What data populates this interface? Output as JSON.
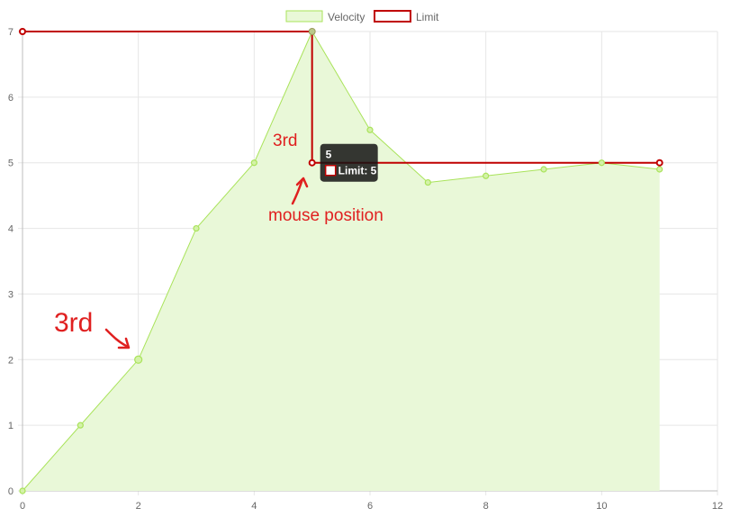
{
  "chart_data": {
    "type": "line",
    "xlim": [
      0,
      12
    ],
    "ylim": [
      0,
      7
    ],
    "x_ticks": [
      0,
      2,
      4,
      6,
      8,
      10,
      12
    ],
    "y_ticks": [
      0,
      1,
      2,
      3,
      4,
      5,
      6,
      7
    ],
    "grid": true,
    "legend_position": "top",
    "series": [
      {
        "name": "Velocity",
        "style": "area",
        "color": "#a9e35a",
        "fill": "#e9f8d8",
        "points": [
          [
            0,
            0
          ],
          [
            1,
            1
          ],
          [
            2,
            2
          ],
          [
            3,
            4
          ],
          [
            4,
            5
          ],
          [
            5,
            7
          ],
          [
            6,
            5.5
          ],
          [
            7,
            4.7
          ],
          [
            8,
            4.8
          ],
          [
            9,
            4.9
          ],
          [
            10,
            5
          ],
          [
            11,
            4.9
          ]
        ]
      },
      {
        "name": "Limit",
        "style": "stepped",
        "color": "#c00000",
        "points": [
          [
            0,
            7
          ],
          [
            5,
            7
          ],
          [
            5,
            5
          ],
          [
            11,
            5
          ]
        ]
      }
    ]
  },
  "tooltip": {
    "title": "5",
    "body": "Limit: 5",
    "at": [
      5,
      5
    ],
    "color": "#c00000"
  },
  "annotations": {
    "label_3rd_small": "3rd",
    "label_3rd_large": "3rd",
    "mouse_label": "mouse position",
    "color": "#e02020"
  }
}
